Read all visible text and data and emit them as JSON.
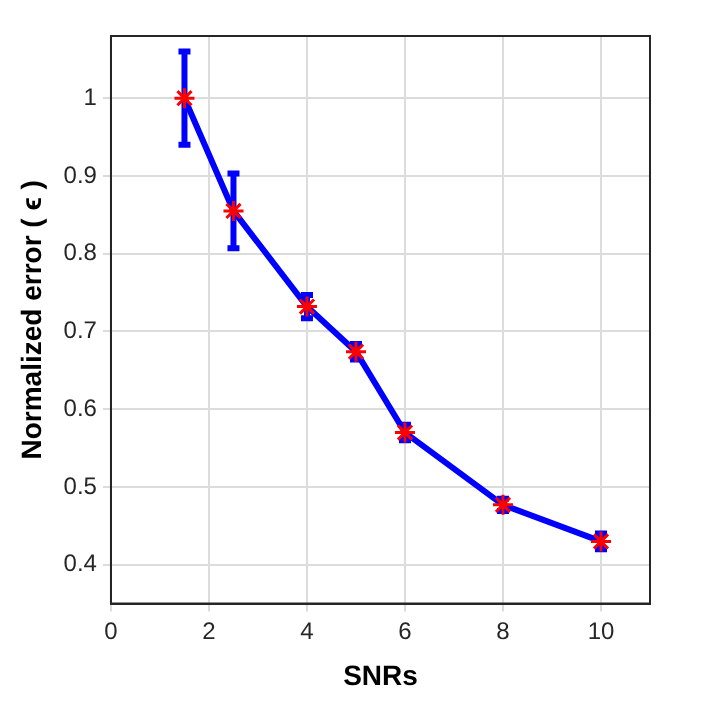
{
  "chart_data": {
    "type": "line",
    "xlabel": "SNRs",
    "ylabel": "Normalized error ( ϵ )",
    "x": [
      1.5,
      2.5,
      4,
      5,
      6,
      8,
      10
    ],
    "series": [
      {
        "color": "#0000ff",
        "values": [
          1.0,
          0.855,
          0.732,
          0.674,
          0.57,
          0.477,
          0.43
        ],
        "errors": [
          0.06,
          0.048,
          0.015,
          0.01,
          0.01,
          0.008,
          0.01
        ]
      }
    ],
    "xlim": [
      0,
      11
    ],
    "xticks": [
      0,
      2,
      4,
      6,
      8,
      10
    ],
    "ylim": [
      0.35,
      1.08
    ],
    "yticks": [
      0.4,
      0.5,
      0.6,
      0.7,
      0.8,
      0.9,
      1
    ],
    "grid": true,
    "marker": "cross",
    "line_style": "solid",
    "legend": false
  }
}
